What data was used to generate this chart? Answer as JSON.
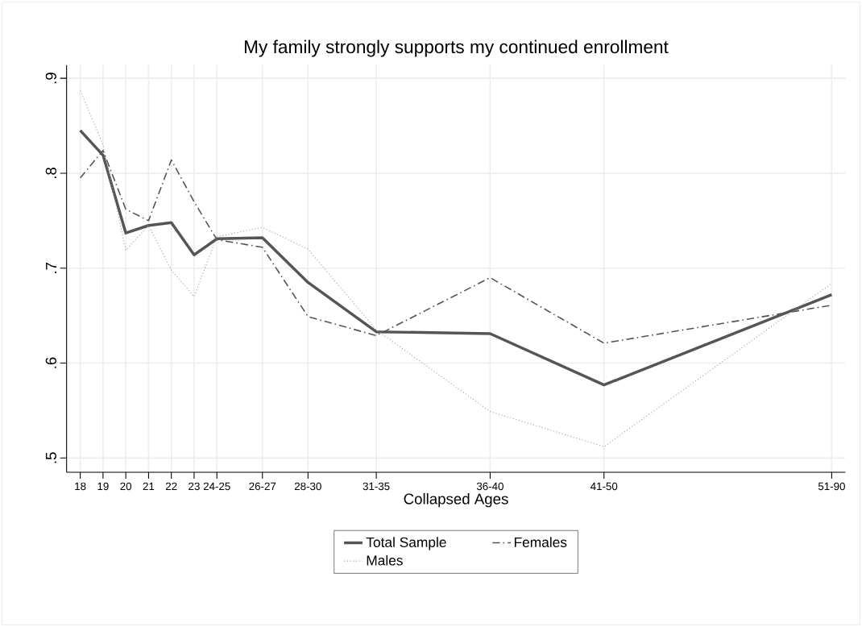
{
  "chart_data": {
    "type": "line",
    "title": "My family strongly supports my continued enrollment",
    "xlabel": "Collapsed Ages",
    "x": [
      18,
      19,
      20,
      21,
      22,
      23,
      24,
      26,
      28,
      31,
      36,
      41,
      51
    ],
    "xlim": [
      17.4,
      51.6
    ],
    "ylim": [
      0.485,
      0.914
    ],
    "xticks": [
      {
        "value": 18,
        "label": "18"
      },
      {
        "value": 19,
        "label": "19"
      },
      {
        "value": 20,
        "label": "20"
      },
      {
        "value": 21,
        "label": "21"
      },
      {
        "value": 22,
        "label": "22"
      },
      {
        "value": 23,
        "label": "23"
      },
      {
        "value": 24,
        "label": "24-25"
      },
      {
        "value": 26,
        "label": "26-27"
      },
      {
        "value": 28,
        "label": "28-30"
      },
      {
        "value": 31,
        "label": "31-35"
      },
      {
        "value": 36,
        "label": "36-40"
      },
      {
        "value": 41,
        "label": "41-50"
      },
      {
        "value": 51,
        "label": "51-90"
      }
    ],
    "yticks": [
      {
        "value": 0.5,
        "label": ".5"
      },
      {
        "value": 0.6,
        "label": ".6"
      },
      {
        "value": 0.7,
        "label": ".7"
      },
      {
        "value": 0.8,
        "label": ".8"
      },
      {
        "value": 0.9,
        "label": ".9"
      }
    ],
    "grid": true,
    "legend": "bottom",
    "marker": "none",
    "series": [
      {
        "name": "Total Sample",
        "color": "#555555",
        "line_style": "solid",
        "values": [
          0.845,
          0.819,
          0.737,
          0.745,
          0.748,
          0.714,
          0.731,
          0.732,
          0.685,
          0.633,
          0.631,
          0.577,
          0.672
        ]
      },
      {
        "name": "Females",
        "color": "#555555",
        "line_style": "dashed",
        "values": [
          0.795,
          0.824,
          0.762,
          0.75,
          0.814,
          0.77,
          0.73,
          0.722,
          0.649,
          0.629,
          0.69,
          0.621,
          0.661
        ]
      },
      {
        "name": "Males",
        "color": "#999999",
        "line_style": "dotted",
        "values": [
          0.887,
          0.83,
          0.719,
          0.745,
          0.698,
          0.67,
          0.733,
          0.743,
          0.72,
          0.635,
          0.549,
          0.512,
          0.684
        ]
      }
    ]
  }
}
